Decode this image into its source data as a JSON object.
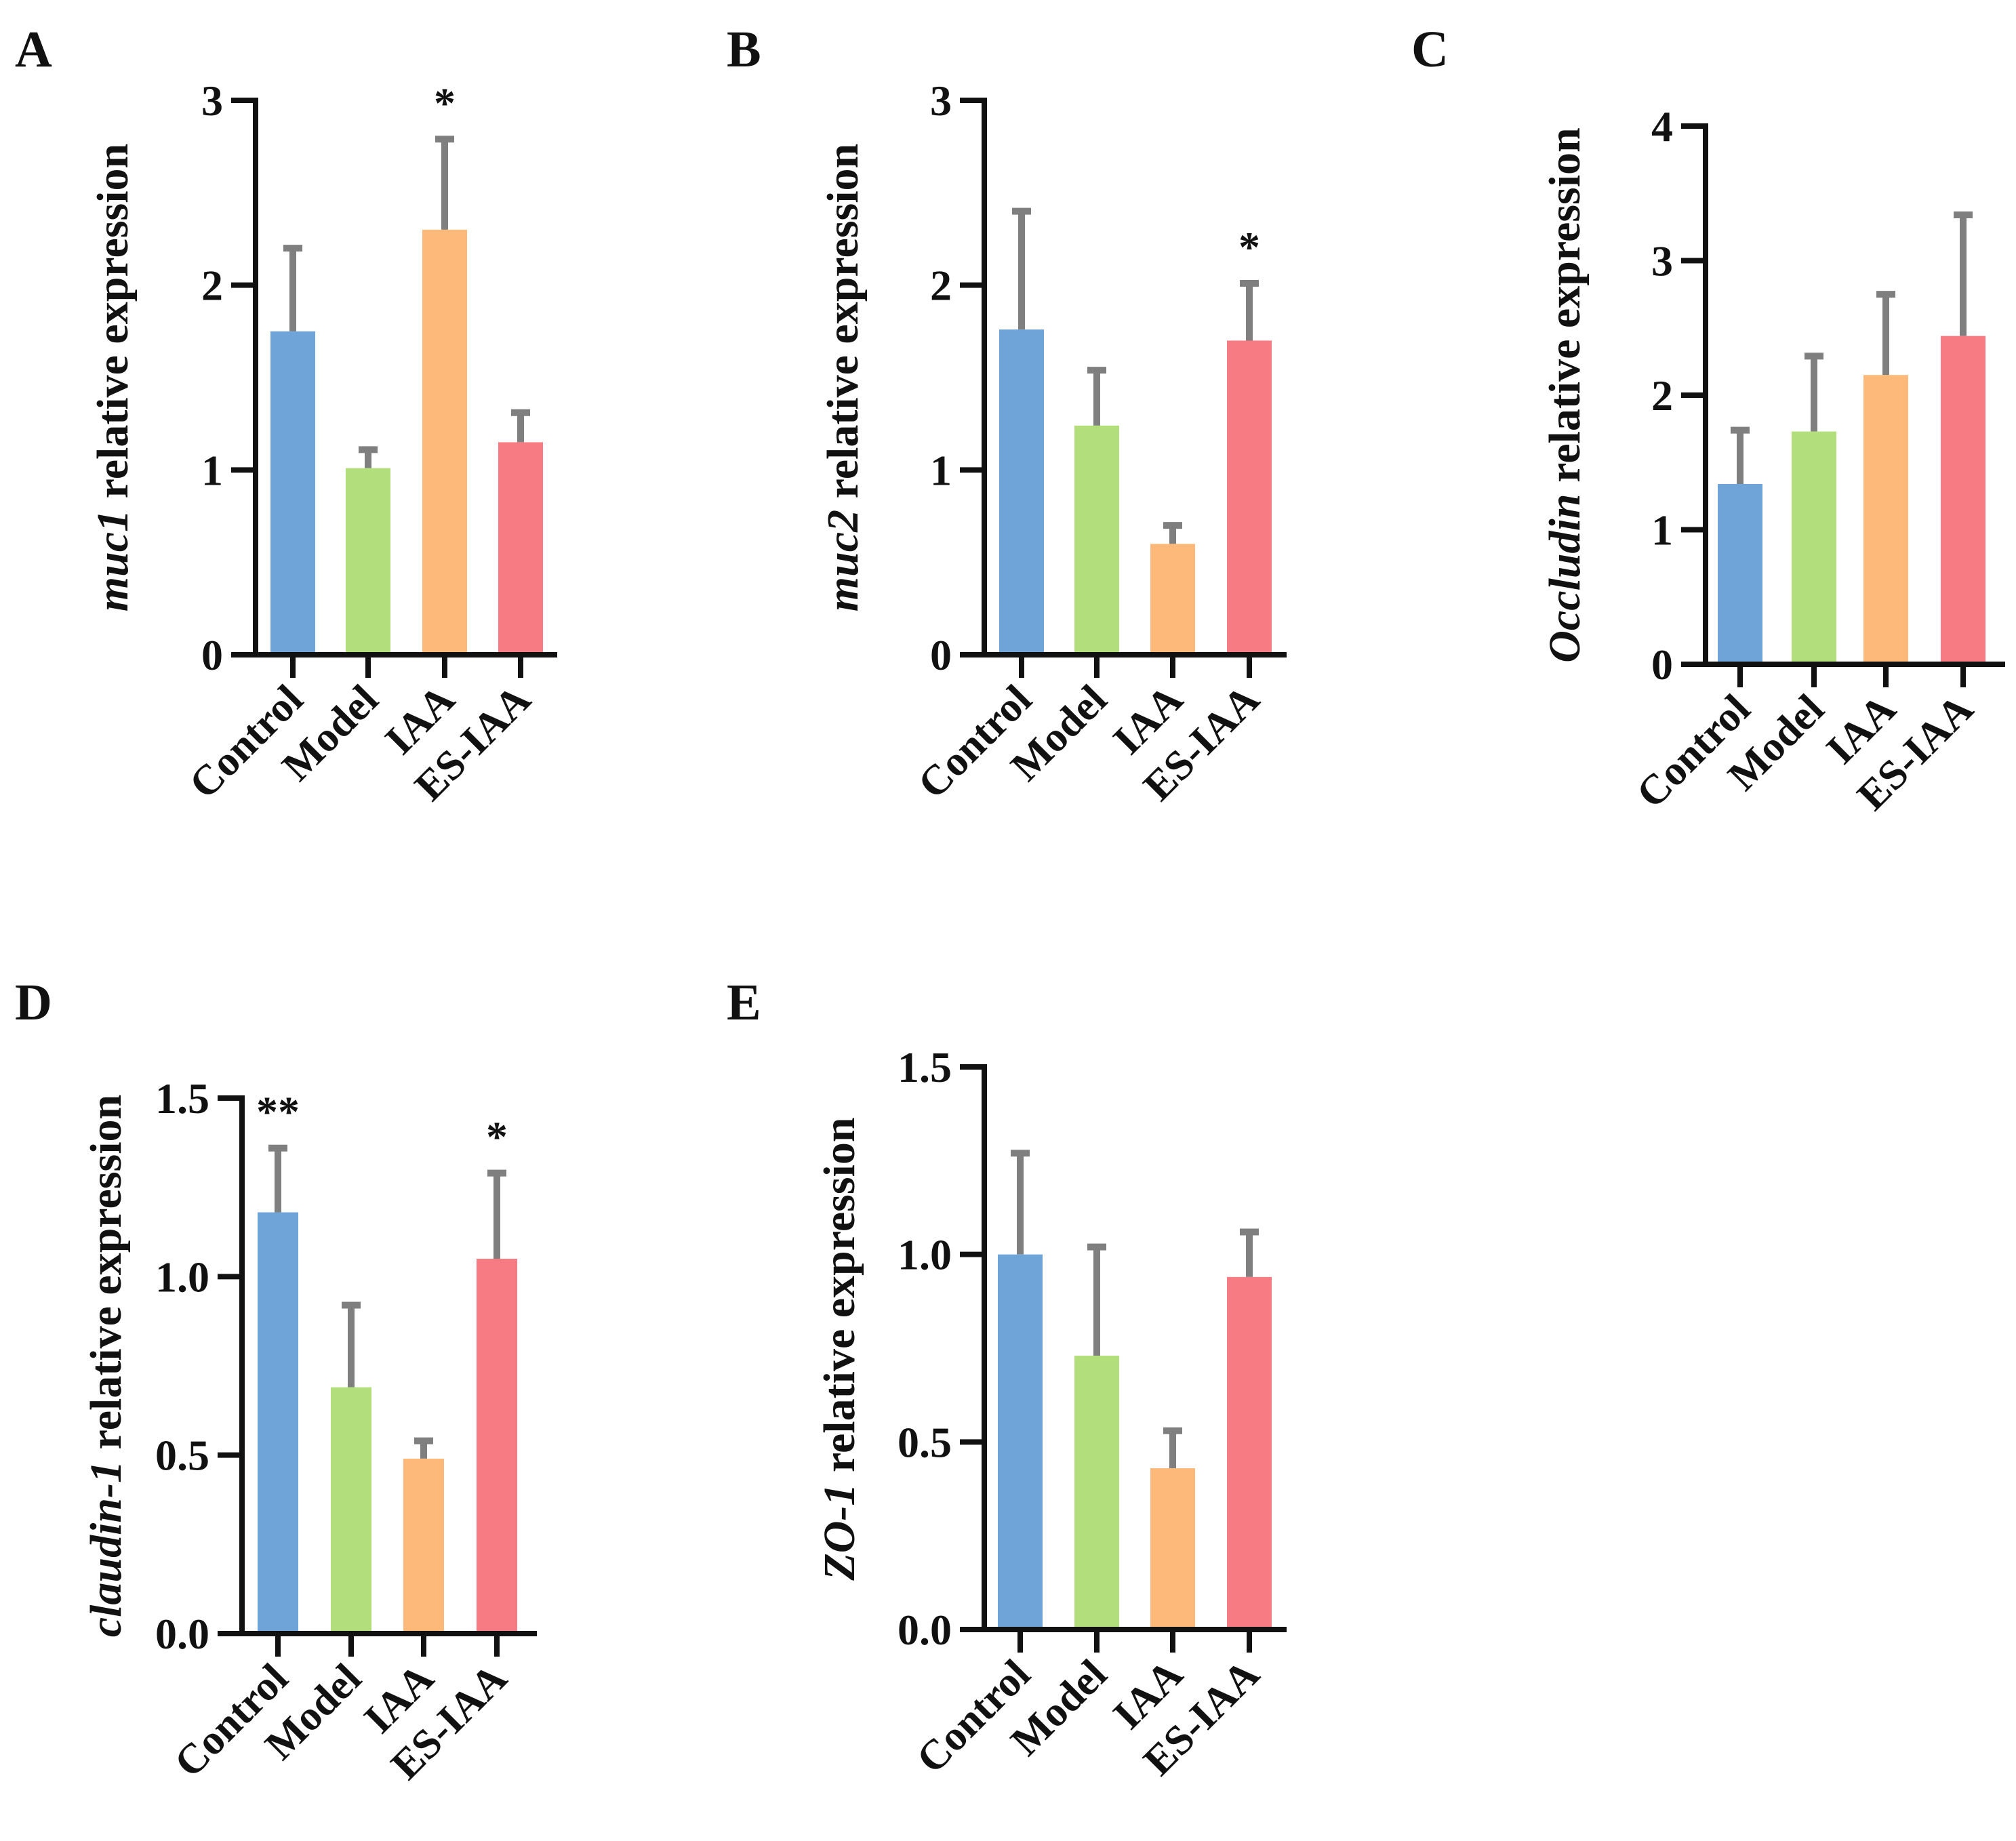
{
  "colors": {
    "Control": "#6fa4d9",
    "Model": "#b2df7c",
    "IAA": "#fcb97a",
    "ES-IAA": "#f77b82",
    "error_bar": "#7f7f7f",
    "axis": "#111111"
  },
  "chart_data": [
    {
      "panel": "A",
      "type": "bar",
      "gene": "muc1",
      "ylabel_rest": " relative expression",
      "categories": [
        "Control",
        "Model",
        "IAA",
        "ES-IAA"
      ],
      "values": [
        1.75,
        1.01,
        2.3,
        1.15
      ],
      "errors": [
        0.45,
        0.1,
        0.49,
        0.16
      ],
      "significance": [
        "",
        "",
        "*",
        ""
      ],
      "ylim": [
        0,
        3
      ],
      "yticks": [
        0,
        1,
        2,
        3
      ],
      "ytick_labels": [
        "0",
        "1",
        "2",
        "3"
      ]
    },
    {
      "panel": "B",
      "type": "bar",
      "gene": "muc2",
      "ylabel_rest": " relative expression",
      "categories": [
        "Control",
        "Model",
        "IAA",
        "ES-IAA"
      ],
      "values": [
        1.76,
        1.24,
        0.6,
        1.7
      ],
      "errors": [
        0.64,
        0.3,
        0.1,
        0.31
      ],
      "significance": [
        "",
        "",
        "",
        "*"
      ],
      "ylim": [
        0,
        3
      ],
      "yticks": [
        0,
        1,
        2,
        3
      ],
      "ytick_labels": [
        "0",
        "1",
        "2",
        "3"
      ]
    },
    {
      "panel": "C",
      "type": "bar",
      "gene": "Occludin",
      "ylabel_rest": " relative expression",
      "categories": [
        "Control",
        "Model",
        "IAA",
        "ES-IAA"
      ],
      "values": [
        1.34,
        1.73,
        2.15,
        2.44
      ],
      "errors": [
        0.4,
        0.56,
        0.6,
        0.9
      ],
      "significance": [
        "",
        "",
        "",
        ""
      ],
      "ylim": [
        0,
        4
      ],
      "yticks": [
        0,
        1,
        2,
        3,
        4
      ],
      "ytick_labels": [
        "0",
        "1",
        "2",
        "3",
        "4"
      ]
    },
    {
      "panel": "D",
      "type": "bar",
      "gene": "claudin-1",
      "ylabel_rest": " relative expression",
      "categories": [
        "Control",
        "Model",
        "IAA",
        "ES-IAA"
      ],
      "values": [
        1.18,
        0.69,
        0.49,
        1.05
      ],
      "errors": [
        0.18,
        0.23,
        0.05,
        0.24
      ],
      "significance": [
        "**",
        "",
        "",
        "*"
      ],
      "ylim": [
        0,
        1.5
      ],
      "yticks": [
        0,
        0.5,
        1.0,
        1.5
      ],
      "ytick_labels": [
        "0.0",
        "0.5",
        "1.0",
        "1.5"
      ]
    },
    {
      "panel": "E",
      "type": "bar",
      "gene": "ZO-1",
      "ylabel_rest": " relative expression",
      "categories": [
        "Control",
        "Model",
        "IAA",
        "ES-IAA"
      ],
      "values": [
        1.0,
        0.73,
        0.43,
        0.94
      ],
      "errors": [
        0.27,
        0.29,
        0.1,
        0.12
      ],
      "significance": [
        "",
        "",
        "",
        ""
      ],
      "ylim": [
        0,
        1.5
      ],
      "yticks": [
        0,
        0.5,
        1.0,
        1.5
      ],
      "ytick_labels": [
        "0.0",
        "0.5",
        "1.0",
        "1.5"
      ]
    }
  ]
}
